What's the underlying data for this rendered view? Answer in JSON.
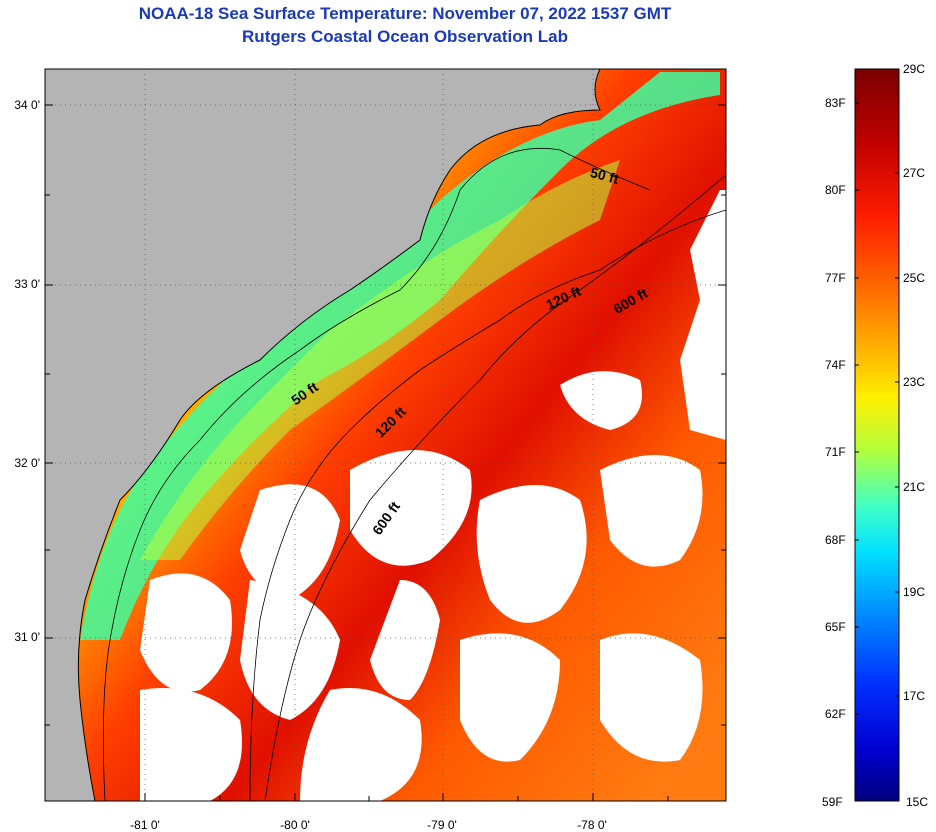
{
  "title": {
    "line1": "NOAA-18 Sea Surface Temperature:  November 07, 2022 1537 GMT",
    "line2": "Rutgers Coastal Ocean Observation Lab"
  },
  "map": {
    "lat_ticks": [
      "34 0'",
      "33 0'",
      "32 0'",
      "31 0'"
    ],
    "lon_ticks": [
      "-81 0'",
      "-80 0'",
      "-79 0'",
      "-78 0'"
    ],
    "contours": [
      {
        "label": "50 ft"
      },
      {
        "label": "120 ft"
      },
      {
        "label": "600 ft"
      },
      {
        "label": "50 ft"
      },
      {
        "label": "120 ft"
      },
      {
        "label": "600 ft"
      }
    ],
    "colors": {
      "land": "#b4b4b4",
      "cloud": "#ffffff",
      "border": "#000000"
    }
  },
  "colorbar": {
    "celsius": [
      "29C",
      "27C",
      "25C",
      "23C",
      "21C",
      "19C",
      "17C",
      "15C"
    ],
    "fahrenheit": [
      "83F",
      "80F",
      "77F",
      "74F",
      "71F",
      "68F",
      "65F",
      "62F",
      "59F"
    ],
    "range_c": [
      15,
      29
    ],
    "palette": [
      "#7a0000",
      "#c00000",
      "#ff1c00",
      "#ff6a00",
      "#ffb000",
      "#fff000",
      "#b4ff3c",
      "#3cffc8",
      "#00e0ff",
      "#0090ff",
      "#0030ff",
      "#0000d0",
      "#00007c"
    ]
  }
}
